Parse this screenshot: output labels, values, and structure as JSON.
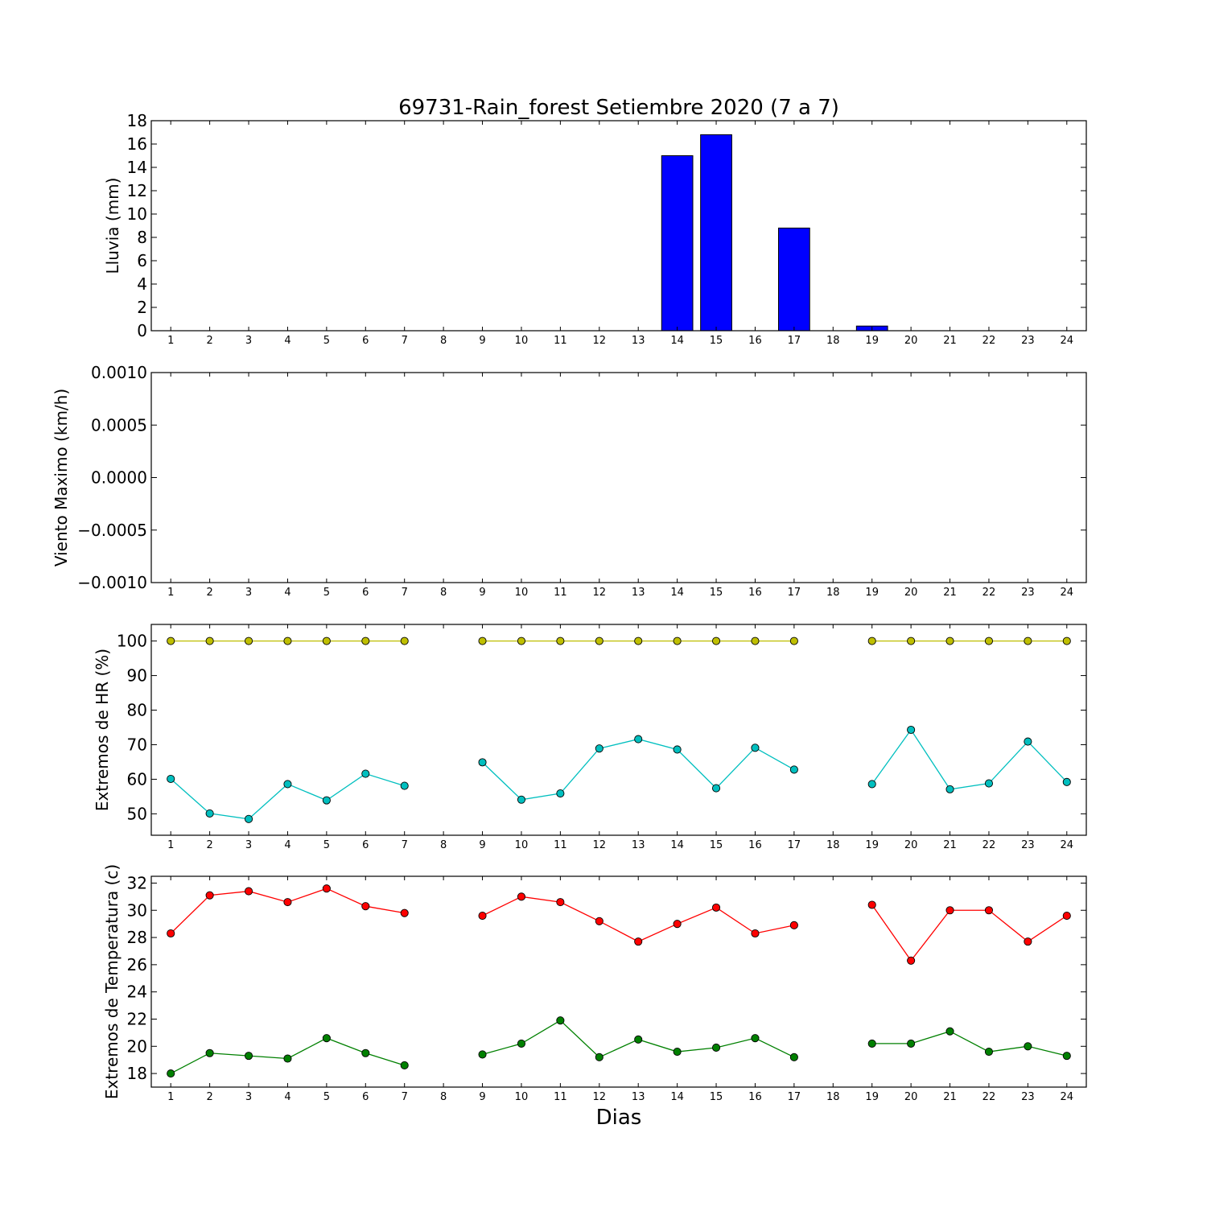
{
  "figure": {
    "title": "69731-Rain_forest Setiembre 2020  (7 a 7)",
    "xlabel": "Dias"
  },
  "colors": {
    "rain_bar": "#0000ff",
    "hr_max": "#bfbf00",
    "hr_min": "#00bfbf",
    "temp_max": "#ff0000",
    "temp_min": "#008000"
  },
  "chart_data": [
    {
      "id": "lluvia",
      "type": "bar",
      "title": "69731-Rain_forest Setiembre 2020  (7 a 7)",
      "xlabel": "",
      "ylabel": "Lluvia (mm)",
      "categories": [
        1,
        2,
        3,
        4,
        5,
        6,
        7,
        8,
        9,
        10,
        11,
        12,
        13,
        14,
        15,
        16,
        17,
        18,
        19,
        20,
        21,
        22,
        23,
        24
      ],
      "xlim": [
        0.5,
        24.5
      ],
      "ylim": [
        0,
        18
      ],
      "yticks": [
        0,
        2,
        4,
        6,
        8,
        10,
        12,
        14,
        16,
        18
      ],
      "ytick_labels": [
        "0",
        "2",
        "4",
        "6",
        "8",
        "10",
        "12",
        "14",
        "16",
        "18"
      ],
      "series": [
        {
          "color": "#0000ff",
          "values": [
            0,
            0,
            0,
            0,
            0,
            0,
            0,
            null,
            0,
            0,
            0,
            0,
            0,
            15.0,
            16.8,
            0,
            8.8,
            null,
            0.4,
            0,
            0,
            0,
            0,
            0
          ]
        }
      ],
      "grid": false
    },
    {
      "id": "viento",
      "type": "line",
      "xlabel": "",
      "ylabel": "Viento Maximo (km/h)",
      "categories": [
        1,
        2,
        3,
        4,
        5,
        6,
        7,
        8,
        9,
        10,
        11,
        12,
        13,
        14,
        15,
        16,
        17,
        18,
        19,
        20,
        21,
        22,
        23,
        24
      ],
      "xlim": [
        0.5,
        24.5
      ],
      "ylim": [
        -0.001,
        0.001
      ],
      "yticks": [
        -0.001,
        -0.0005,
        0,
        0.0005,
        0.001
      ],
      "ytick_labels": [
        "−0.0010",
        "−0.0005",
        "0.0000",
        "0.0005",
        "0.0010"
      ],
      "series": [],
      "grid": false
    },
    {
      "id": "hr",
      "type": "line",
      "xlabel": "",
      "ylabel": "Extremos de HR (%)",
      "categories": [
        1,
        2,
        3,
        4,
        5,
        6,
        7,
        8,
        9,
        10,
        11,
        12,
        13,
        14,
        15,
        16,
        17,
        18,
        19,
        20,
        21,
        22,
        23,
        24
      ],
      "xlim": [
        0.5,
        24.5
      ],
      "ylim": [
        43.8,
        104.8
      ],
      "yticks": [
        50,
        60,
        70,
        80,
        90,
        100
      ],
      "ytick_labels": [
        "50",
        "60",
        "70",
        "80",
        "90",
        "100"
      ],
      "series": [
        {
          "color": "#bfbf00",
          "values": [
            100,
            100,
            100,
            100,
            100,
            100,
            100,
            null,
            100,
            100,
            100,
            100,
            100,
            100,
            100,
            100,
            100,
            null,
            100,
            100,
            100,
            100,
            100,
            100
          ]
        },
        {
          "color": "#00bfbf",
          "values": [
            60.1,
            50.1,
            48.5,
            58.6,
            53.9,
            61.6,
            58.1,
            null,
            64.9,
            54.1,
            55.9,
            68.9,
            71.6,
            68.6,
            57.4,
            69.1,
            62.8,
            null,
            58.6,
            74.3,
            57.1,
            58.8,
            70.9,
            59.2
          ]
        }
      ],
      "grid": false
    },
    {
      "id": "temperatura",
      "type": "line",
      "xlabel": "Dias",
      "ylabel": "Extremos de Temperatura (c)",
      "categories": [
        1,
        2,
        3,
        4,
        5,
        6,
        7,
        8,
        9,
        10,
        11,
        12,
        13,
        14,
        15,
        16,
        17,
        18,
        19,
        20,
        21,
        22,
        23,
        24
      ],
      "xlim": [
        0.5,
        24.5
      ],
      "ylim": [
        17.0,
        32.5
      ],
      "yticks": [
        18,
        20,
        22,
        24,
        26,
        28,
        30,
        32
      ],
      "ytick_labels": [
        "18",
        "20",
        "22",
        "24",
        "26",
        "28",
        "30",
        "32"
      ],
      "series": [
        {
          "color": "#ff0000",
          "values": [
            28.3,
            31.1,
            31.4,
            30.6,
            31.6,
            30.3,
            29.8,
            null,
            29.6,
            31.0,
            30.6,
            29.2,
            27.7,
            29.0,
            30.2,
            28.3,
            28.9,
            null,
            30.4,
            26.3,
            30.0,
            30.0,
            27.7,
            29.6
          ]
        },
        {
          "color": "#008000",
          "values": [
            18.0,
            19.5,
            19.3,
            19.1,
            20.6,
            19.5,
            18.6,
            null,
            19.4,
            20.2,
            21.9,
            19.2,
            20.5,
            19.6,
            19.9,
            20.6,
            19.2,
            null,
            20.2,
            20.2,
            21.1,
            19.6,
            20.0,
            19.3
          ]
        }
      ],
      "grid": false
    }
  ]
}
